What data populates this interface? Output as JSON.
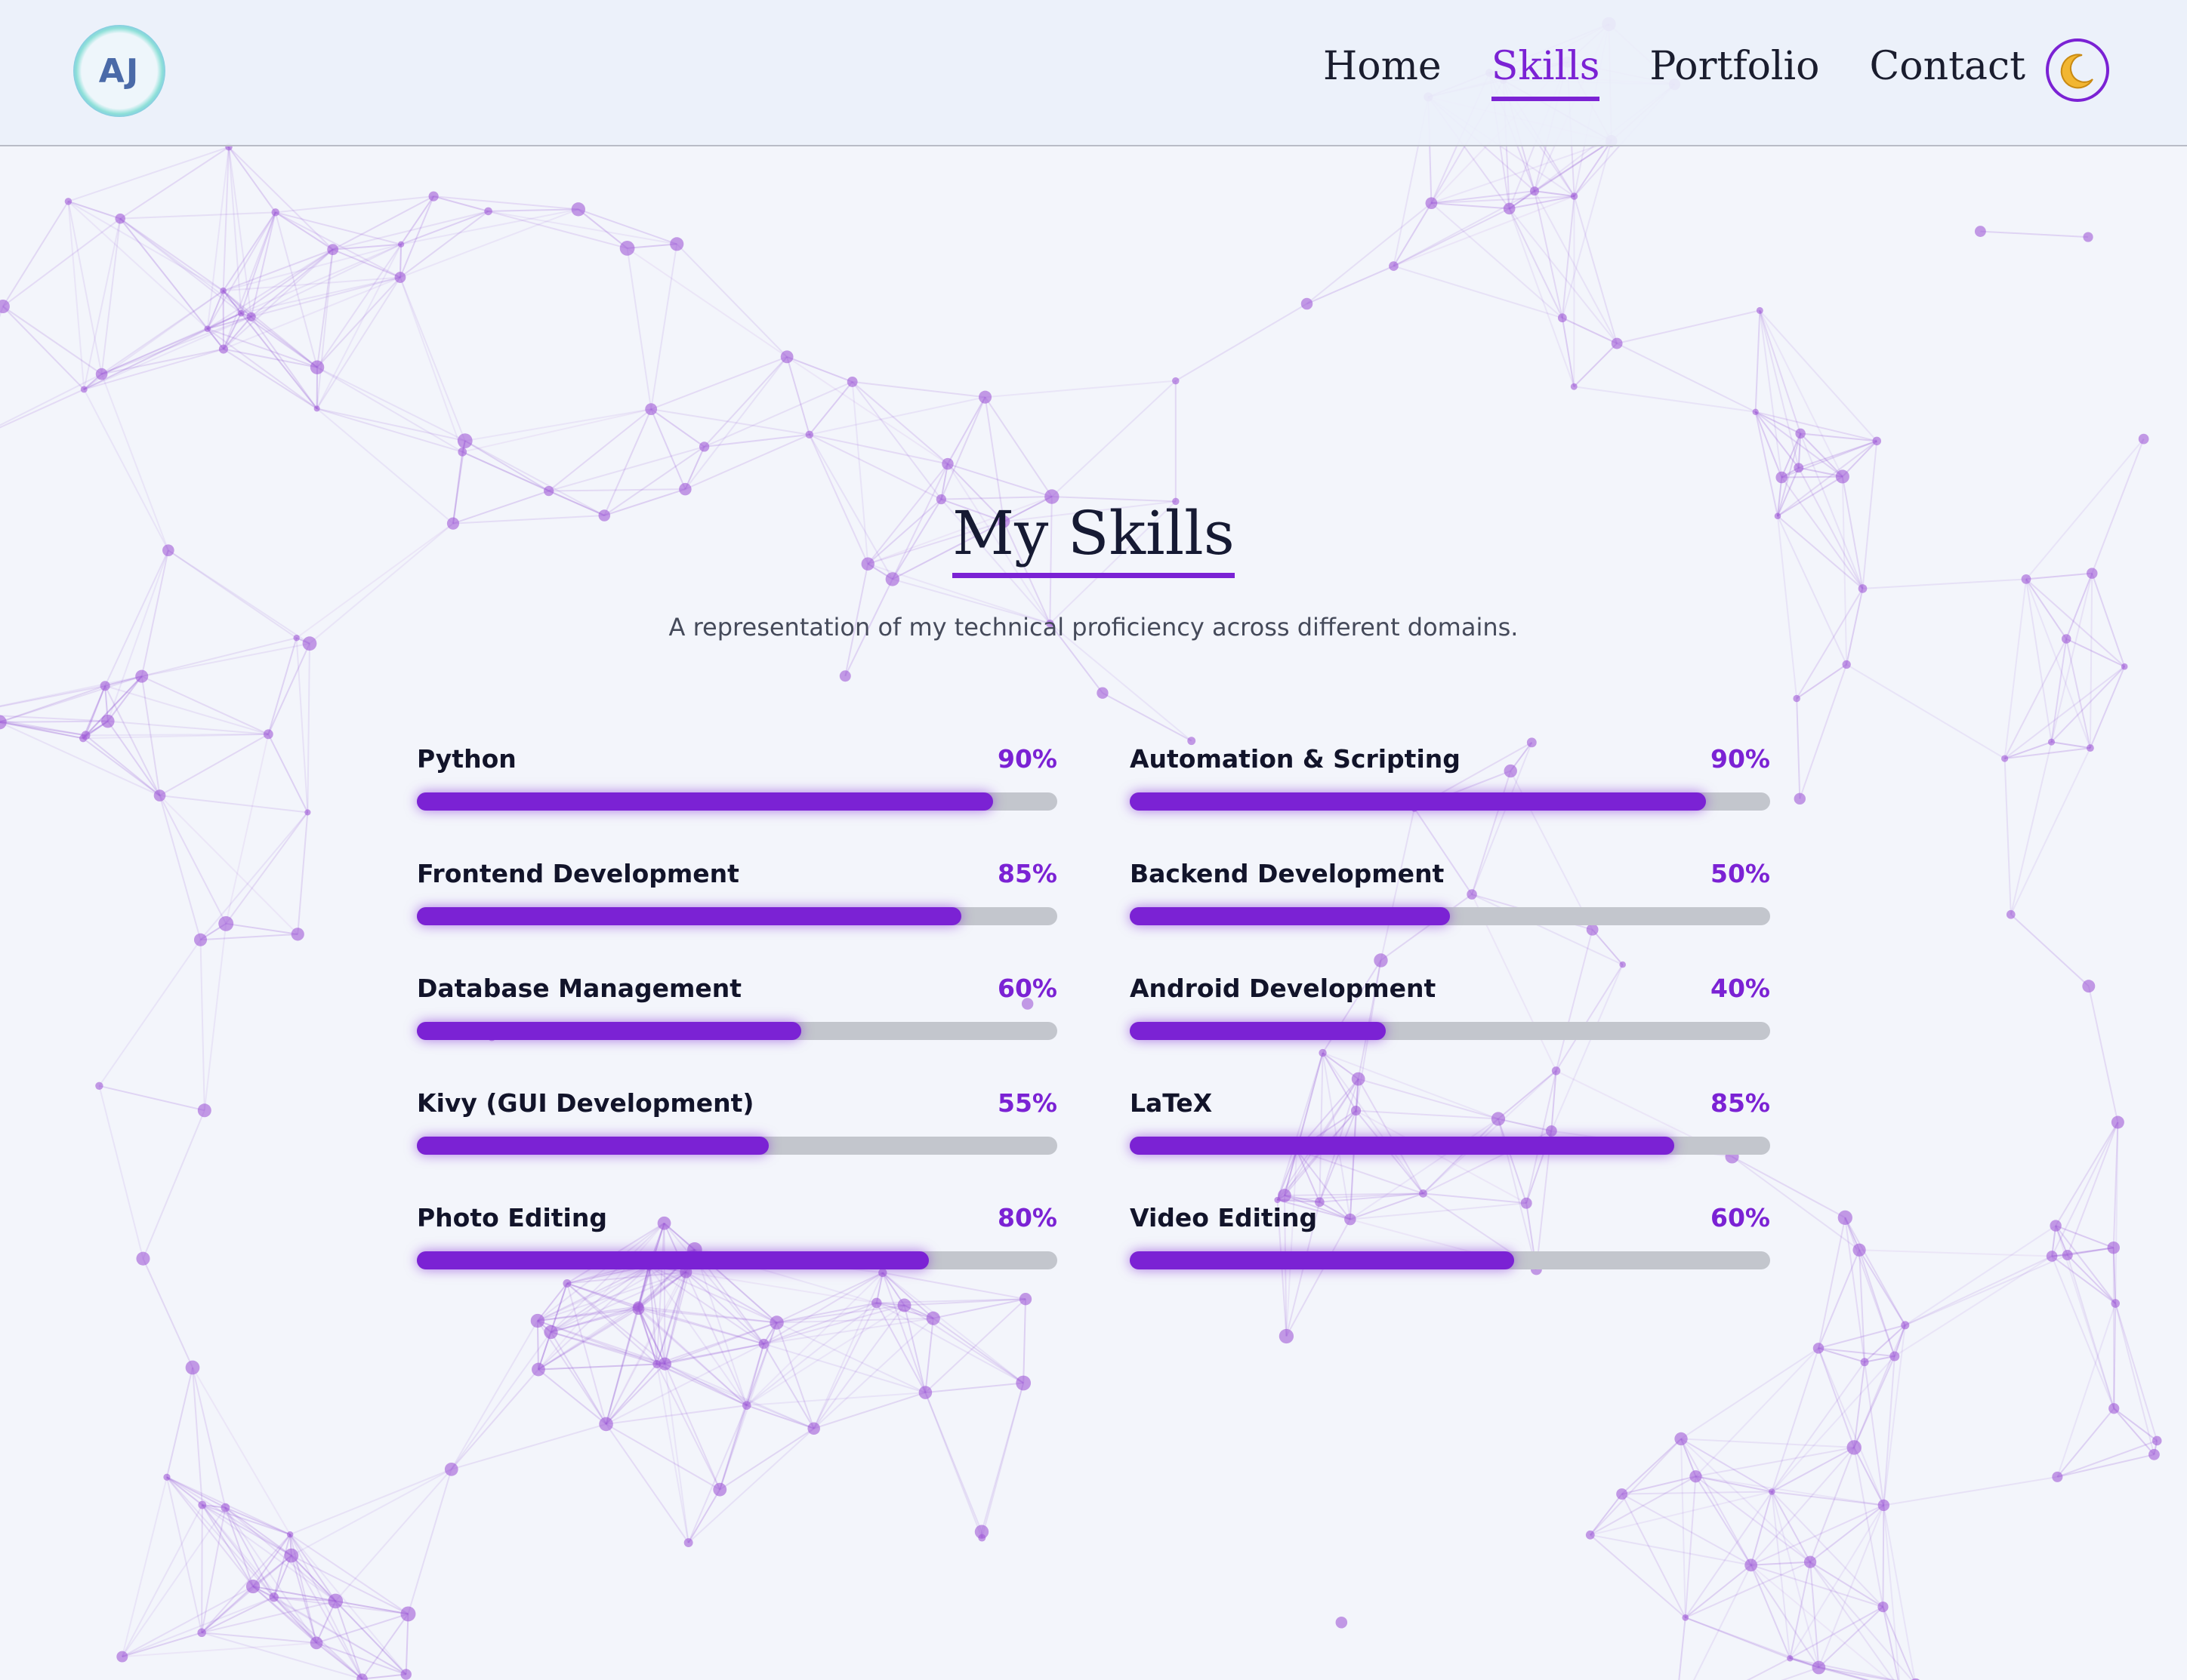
{
  "header": {
    "logo": "AJ",
    "nav": [
      "Home",
      "Skills",
      "Portfolio",
      "Contact"
    ],
    "active": 1
  },
  "section": {
    "title": "My Skills",
    "subtitle": "A representation of my technical proficiency across different domains."
  },
  "skills": {
    "range": [
      0,
      100
    ],
    "items": [
      {
        "name": "Python",
        "value": 90,
        "value_label": "90%"
      },
      {
        "name": "Automation & Scripting",
        "value": 90,
        "value_label": "90%"
      },
      {
        "name": "Frontend Development",
        "value": 85,
        "value_label": "85%"
      },
      {
        "name": "Backend Development",
        "value": 50,
        "value_label": "50%"
      },
      {
        "name": "Database Management",
        "value": 60,
        "value_label": "60%"
      },
      {
        "name": "Android Development",
        "value": 40,
        "value_label": "40%"
      },
      {
        "name": "Kivy (GUI Development)",
        "value": 55,
        "value_label": "55%"
      },
      {
        "name": "LaTeX",
        "value": 85,
        "value_label": "85%"
      },
      {
        "name": "Photo Editing",
        "value": 80,
        "value_label": "80%"
      },
      {
        "name": "Video Editing",
        "value": 60,
        "value_label": "60%"
      }
    ]
  }
}
